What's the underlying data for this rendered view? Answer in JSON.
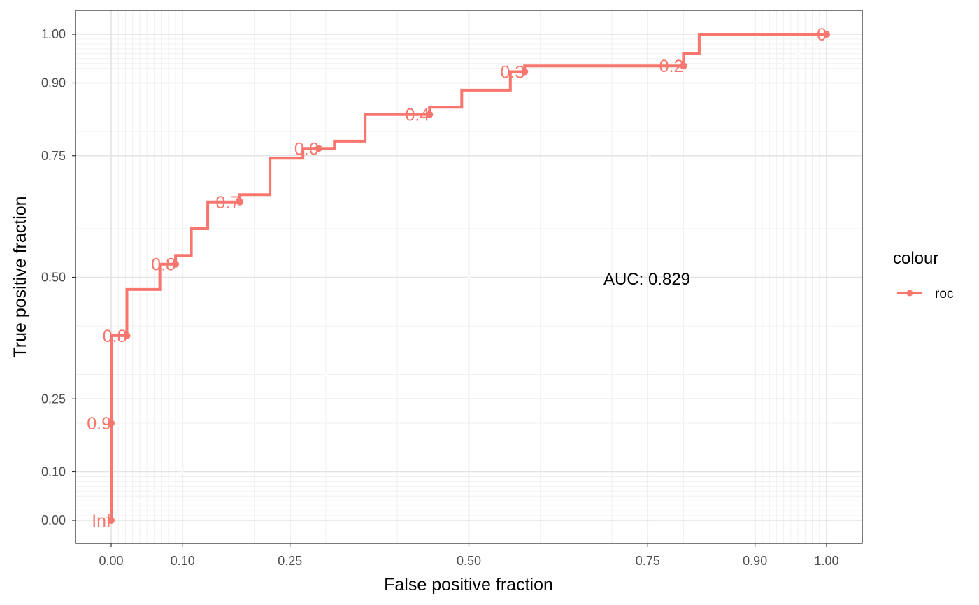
{
  "chart_data": {
    "type": "line",
    "subtype": "roc-curve-stepped",
    "xlabel": "False positive fraction",
    "ylabel": "True positive fraction",
    "xlim": [
      0,
      1
    ],
    "ylim": [
      0,
      1
    ],
    "x_tick_labels": [
      "0.00",
      "0.10",
      "0.25",
      "0.50",
      "0.75",
      "0.90",
      "1.00"
    ],
    "y_tick_labels": [
      "0.00",
      "0.10",
      "0.25",
      "0.50",
      "0.75",
      "0.90",
      "1.00"
    ],
    "x_ticks": [
      0,
      0.1,
      0.25,
      0.5,
      0.75,
      0.9,
      1
    ],
    "y_ticks": [
      0,
      0.1,
      0.25,
      0.5,
      0.75,
      0.9,
      1
    ],
    "grid": true,
    "legend": {
      "title": "colour",
      "position": "right",
      "entries": [
        {
          "label": "roc",
          "color": "#F8766D"
        }
      ]
    },
    "annotation": "AUC: 0.829",
    "series": [
      {
        "name": "roc",
        "color": "#F8766D",
        "points": [
          [
            0,
            0
          ],
          [
            0,
            0.2
          ],
          [
            0,
            0.38
          ],
          [
            0.022,
            0.38
          ],
          [
            0.022,
            0.475
          ],
          [
            0.068,
            0.475
          ],
          [
            0.068,
            0.527
          ],
          [
            0.09,
            0.527
          ],
          [
            0.09,
            0.545
          ],
          [
            0.112,
            0.545
          ],
          [
            0.112,
            0.6
          ],
          [
            0.135,
            0.6
          ],
          [
            0.135,
            0.655
          ],
          [
            0.18,
            0.655
          ],
          [
            0.18,
            0.67
          ],
          [
            0.222,
            0.67
          ],
          [
            0.222,
            0.745
          ],
          [
            0.268,
            0.745
          ],
          [
            0.268,
            0.765
          ],
          [
            0.312,
            0.765
          ],
          [
            0.312,
            0.78
          ],
          [
            0.355,
            0.78
          ],
          [
            0.355,
            0.835
          ],
          [
            0.445,
            0.835
          ],
          [
            0.445,
            0.85
          ],
          [
            0.49,
            0.85
          ],
          [
            0.49,
            0.885
          ],
          [
            0.558,
            0.885
          ],
          [
            0.558,
            0.923
          ],
          [
            0.578,
            0.923
          ],
          [
            0.578,
            0.935
          ],
          [
            0.8,
            0.935
          ],
          [
            0.8,
            0.96
          ],
          [
            0.822,
            0.96
          ],
          [
            0.822,
            1.0
          ],
          [
            1.0,
            1.0
          ]
        ],
        "cutoffs": [
          {
            "label": "Inf",
            "x": 0,
            "y": 0
          },
          {
            "label": "0.9",
            "x": 0,
            "y": 0.2
          },
          {
            "label": "0.8",
            "x": 0.022,
            "y": 0.38
          },
          {
            "label": "0.8",
            "x": 0.09,
            "y": 0.527
          },
          {
            "label": "0.7",
            "x": 0.18,
            "y": 0.655
          },
          {
            "label": "0.6",
            "x": 0.29,
            "y": 0.765
          },
          {
            "label": "0.4",
            "x": 0.445,
            "y": 0.835
          },
          {
            "label": "0.3",
            "x": 0.578,
            "y": 0.923
          },
          {
            "label": "0.2",
            "x": 0.8,
            "y": 0.935
          },
          {
            "label": "0",
            "x": 1.0,
            "y": 1.0
          }
        ]
      }
    ]
  }
}
